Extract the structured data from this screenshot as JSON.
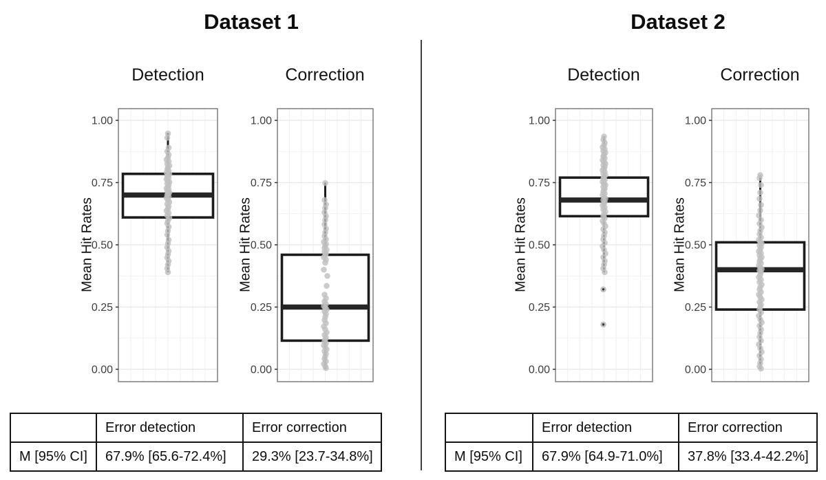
{
  "axis": {
    "tick_labels": [
      "1.00",
      "0.75",
      "0.50",
      "0.25",
      "0.00"
    ],
    "tick_values": [
      1.0,
      0.75,
      0.5,
      0.25,
      0.0
    ],
    "minor_values": [
      0.875,
      0.625,
      0.375,
      0.125
    ]
  },
  "colors": {
    "grid_major": "#e5e5e5",
    "grid_minor": "#f2f2f2",
    "grid_vertical": "#efefef",
    "panel_border": "#7d7d7d",
    "box_stroke": "#1c1c1c",
    "median": "#262626",
    "whisker": "#1c1c1c",
    "point_fill": "#bfbfbf",
    "tick_text": "#3d3d3d",
    "divider": "#3f3f3f"
  },
  "chart_data": [
    {
      "type": "boxplot",
      "title": "Dataset 1",
      "ylim": [
        0,
        1
      ],
      "legend": "none",
      "grid": "light gray major and minor, both directions",
      "panels": [
        {
          "title": "Detection",
          "ylabel": "Mean Hit Rates",
          "box": {
            "q1": 0.61,
            "median": 0.7,
            "q3": 0.785,
            "whisker_low": 0.39,
            "whisker_high": 0.95
          },
          "outliers": [],
          "points": [
            [
              0.947,
              0
            ],
            [
              0.93,
              -1
            ],
            [
              0.89,
              1
            ],
            [
              0.875,
              -1
            ],
            [
              0.862,
              1
            ],
            [
              0.85,
              0
            ],
            [
              0.842,
              -2
            ],
            [
              0.835,
              1
            ],
            [
              0.825,
              -1
            ],
            [
              0.818,
              2
            ],
            [
              0.81,
              0
            ],
            [
              0.803,
              -1
            ],
            [
              0.797,
              1
            ],
            [
              0.79,
              -2
            ],
            [
              0.785,
              2
            ],
            [
              0.78,
              0
            ],
            [
              0.775,
              -1
            ],
            [
              0.77,
              1
            ],
            [
              0.763,
              -2
            ],
            [
              0.757,
              0
            ],
            [
              0.752,
              2
            ],
            [
              0.746,
              -1
            ],
            [
              0.74,
              1
            ],
            [
              0.733,
              0
            ],
            [
              0.727,
              -2
            ],
            [
              0.722,
              1
            ],
            [
              0.716,
              -1
            ],
            [
              0.71,
              2
            ],
            [
              0.705,
              0
            ],
            [
              0.7,
              -1
            ],
            [
              0.694,
              1
            ],
            [
              0.688,
              -2
            ],
            [
              0.68,
              0
            ],
            [
              0.672,
              2
            ],
            [
              0.664,
              -1
            ],
            [
              0.655,
              1
            ],
            [
              0.646,
              0
            ],
            [
              0.637,
              -2
            ],
            [
              0.628,
              1
            ],
            [
              0.618,
              -1
            ],
            [
              0.608,
              2
            ],
            [
              0.598,
              0
            ],
            [
              0.586,
              -1
            ],
            [
              0.572,
              1
            ],
            [
              0.556,
              0
            ],
            [
              0.54,
              -1
            ],
            [
              0.52,
              1
            ],
            [
              0.505,
              0
            ],
            [
              0.49,
              -1
            ],
            [
              0.475,
              1
            ],
            [
              0.462,
              0
            ],
            [
              0.448,
              -1
            ],
            [
              0.435,
              1
            ],
            [
              0.42,
              0
            ],
            [
              0.405,
              -1
            ],
            [
              0.39,
              0
            ]
          ]
        },
        {
          "title": "Correction",
          "ylabel": "Mean Hit Rates",
          "box": {
            "q1": 0.115,
            "median": 0.25,
            "q3": 0.46,
            "whisker_low": 0.0,
            "whisker_high": 0.75
          },
          "outliers": [],
          "points": [
            [
              0.748,
              0
            ],
            [
              0.68,
              -1
            ],
            [
              0.662,
              1
            ],
            [
              0.648,
              0
            ],
            [
              0.63,
              -1
            ],
            [
              0.615,
              1
            ],
            [
              0.6,
              0
            ],
            [
              0.582,
              -1
            ],
            [
              0.565,
              1
            ],
            [
              0.55,
              0
            ],
            [
              0.535,
              -1
            ],
            [
              0.522,
              1
            ],
            [
              0.512,
              -2
            ],
            [
              0.503,
              1
            ],
            [
              0.495,
              0
            ],
            [
              0.487,
              -1
            ],
            [
              0.48,
              2
            ],
            [
              0.472,
              -1
            ],
            [
              0.465,
              1
            ],
            [
              0.458,
              0
            ],
            [
              0.45,
              -2
            ],
            [
              0.44,
              1
            ],
            [
              0.428,
              0
            ],
            [
              0.4,
              -2
            ],
            [
              0.375,
              3
            ],
            [
              0.335,
              2
            ],
            [
              0.3,
              -1
            ],
            [
              0.285,
              1
            ],
            [
              0.272,
              -1
            ],
            [
              0.262,
              1
            ],
            [
              0.254,
              -2
            ],
            [
              0.247,
              0
            ],
            [
              0.24,
              2
            ],
            [
              0.232,
              -1
            ],
            [
              0.222,
              1
            ],
            [
              0.21,
              0
            ],
            [
              0.198,
              -1
            ],
            [
              0.185,
              1
            ],
            [
              0.172,
              -2
            ],
            [
              0.16,
              0
            ],
            [
              0.148,
              2
            ],
            [
              0.138,
              -1
            ],
            [
              0.128,
              1
            ],
            [
              0.12,
              0
            ],
            [
              0.112,
              -1
            ],
            [
              0.104,
              1
            ],
            [
              0.096,
              -2
            ],
            [
              0.088,
              0
            ],
            [
              0.08,
              2
            ],
            [
              0.072,
              -1
            ],
            [
              0.062,
              1
            ],
            [
              0.052,
              0
            ],
            [
              0.042,
              -1
            ],
            [
              0.032,
              1
            ],
            [
              0.022,
              -2
            ],
            [
              0.012,
              0
            ],
            [
              0.005,
              1
            ]
          ]
        }
      ],
      "stats_table": {
        "headers": [
          "",
          "Error detection",
          "Error correction"
        ],
        "row_label": "M [95% CI]",
        "values": [
          "67.9% [65.6-72.4%]",
          "29.3% [23.7-34.8%]"
        ]
      }
    },
    {
      "type": "boxplot",
      "title": "Dataset 2",
      "ylim": [
        0,
        1
      ],
      "legend": "none",
      "grid": "light gray major and minor, both directions",
      "panels": [
        {
          "title": "Detection",
          "ylabel": "Mean Hit Rates",
          "box": {
            "q1": 0.615,
            "median": 0.68,
            "q3": 0.77,
            "whisker_low": 0.39,
            "whisker_high": 0.935
          },
          "outliers": [
            [
              0.321,
              -1
            ],
            [
              0.18,
              -1
            ]
          ],
          "points": [
            [
              0.935,
              0
            ],
            [
              0.922,
              -1
            ],
            [
              0.91,
              1
            ],
            [
              0.9,
              0
            ],
            [
              0.892,
              -2
            ],
            [
              0.884,
              1
            ],
            [
              0.877,
              -1
            ],
            [
              0.87,
              2
            ],
            [
              0.862,
              0
            ],
            [
              0.855,
              -1
            ],
            [
              0.848,
              1
            ],
            [
              0.84,
              -2
            ],
            [
              0.833,
              0
            ],
            [
              0.826,
              2
            ],
            [
              0.82,
              -1
            ],
            [
              0.813,
              1
            ],
            [
              0.806,
              0
            ],
            [
              0.8,
              -2
            ],
            [
              0.793,
              1
            ],
            [
              0.786,
              -1
            ],
            [
              0.78,
              2
            ],
            [
              0.773,
              0
            ],
            [
              0.766,
              -1
            ],
            [
              0.76,
              1
            ],
            [
              0.753,
              -2
            ],
            [
              0.746,
              0
            ],
            [
              0.74,
              2
            ],
            [
              0.733,
              -1
            ],
            [
              0.726,
              1
            ],
            [
              0.72,
              0
            ],
            [
              0.713,
              -1
            ],
            [
              0.706,
              1
            ],
            [
              0.7,
              -2
            ],
            [
              0.693,
              0
            ],
            [
              0.686,
              2
            ],
            [
              0.68,
              -1
            ],
            [
              0.673,
              1
            ],
            [
              0.666,
              0
            ],
            [
              0.658,
              -2
            ],
            [
              0.65,
              1
            ],
            [
              0.642,
              -1
            ],
            [
              0.633,
              2
            ],
            [
              0.624,
              0
            ],
            [
              0.615,
              -1
            ],
            [
              0.606,
              1
            ],
            [
              0.596,
              -2
            ],
            [
              0.586,
              0
            ],
            [
              0.575,
              2
            ],
            [
              0.563,
              -1
            ],
            [
              0.55,
              1
            ],
            [
              0.536,
              0
            ],
            [
              0.522,
              -1
            ],
            [
              0.508,
              1
            ],
            [
              0.494,
              -2
            ],
            [
              0.48,
              0
            ],
            [
              0.465,
              2
            ],
            [
              0.45,
              -1
            ],
            [
              0.435,
              1
            ],
            [
              0.42,
              0
            ],
            [
              0.405,
              -1
            ],
            [
              0.39,
              1
            ]
          ]
        },
        {
          "title": "Correction",
          "ylabel": "Mean Hit Rates",
          "box": {
            "q1": 0.24,
            "median": 0.4,
            "q3": 0.51,
            "whisker_low": 0.0,
            "whisker_high": 0.78
          },
          "outliers": [],
          "points": [
            [
              0.78,
              0
            ],
            [
              0.768,
              -1
            ],
            [
              0.74,
              1
            ],
            [
              0.71,
              0
            ],
            [
              0.685,
              -1
            ],
            [
              0.66,
              1
            ],
            [
              0.638,
              0
            ],
            [
              0.618,
              -2
            ],
            [
              0.6,
              1
            ],
            [
              0.585,
              -1
            ],
            [
              0.57,
              2
            ],
            [
              0.556,
              0
            ],
            [
              0.543,
              -1
            ],
            [
              0.53,
              1
            ],
            [
              0.52,
              -2
            ],
            [
              0.512,
              0
            ],
            [
              0.505,
              2
            ],
            [
              0.498,
              -1
            ],
            [
              0.49,
              1
            ],
            [
              0.482,
              0
            ],
            [
              0.474,
              -2
            ],
            [
              0.466,
              1
            ],
            [
              0.458,
              -1
            ],
            [
              0.45,
              2
            ],
            [
              0.442,
              0
            ],
            [
              0.434,
              -1
            ],
            [
              0.426,
              1
            ],
            [
              0.418,
              -2
            ],
            [
              0.41,
              0
            ],
            [
              0.403,
              2
            ],
            [
              0.397,
              -1
            ],
            [
              0.39,
              1
            ],
            [
              0.38,
              0
            ],
            [
              0.37,
              -2
            ],
            [
              0.36,
              1
            ],
            [
              0.35,
              -1
            ],
            [
              0.34,
              2
            ],
            [
              0.33,
              0
            ],
            [
              0.32,
              -1
            ],
            [
              0.31,
              1
            ],
            [
              0.3,
              -2
            ],
            [
              0.29,
              0
            ],
            [
              0.28,
              2
            ],
            [
              0.27,
              -1
            ],
            [
              0.26,
              1
            ],
            [
              0.25,
              0
            ],
            [
              0.24,
              -1
            ],
            [
              0.228,
              1
            ],
            [
              0.215,
              -2
            ],
            [
              0.2,
              0
            ],
            [
              0.188,
              2
            ],
            [
              0.175,
              -1
            ],
            [
              0.16,
              1
            ],
            [
              0.145,
              0
            ],
            [
              0.13,
              -1
            ],
            [
              0.115,
              1
            ],
            [
              0.1,
              -2
            ],
            [
              0.085,
              0
            ],
            [
              0.07,
              2
            ],
            [
              0.055,
              -1
            ],
            [
              0.04,
              1
            ],
            [
              0.025,
              0
            ],
            [
              0.012,
              -1
            ],
            [
              0.003,
              1
            ]
          ]
        }
      ],
      "stats_table": {
        "headers": [
          "",
          "Error detection",
          "Error correction"
        ],
        "row_label": "M [95% CI]",
        "values": [
          "67.9% [64.9-71.0%]",
          "37.8% [33.4-42.2%]"
        ]
      }
    }
  ]
}
